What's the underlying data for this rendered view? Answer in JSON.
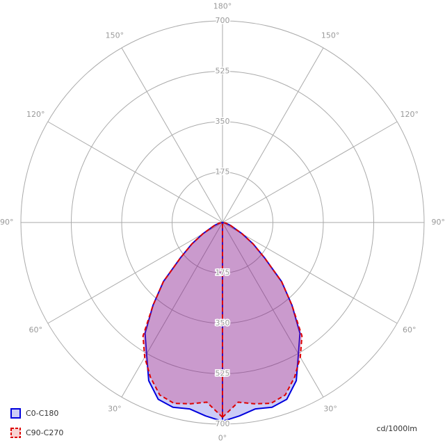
{
  "chart_data": {
    "type": "polar",
    "unit_label": "cd/1000lm",
    "angles": [
      0,
      5,
      10,
      15,
      20,
      25,
      30,
      35,
      40,
      45,
      50,
      55,
      60,
      70,
      80,
      90
    ],
    "series": [
      {
        "name": "C0-C180",
        "color": "#0000dd",
        "dashed": false,
        "values": [
          690,
          674,
          657,
          664,
          653,
          606,
          527,
          469,
          375,
          290,
          190,
          130,
          80,
          30,
          10,
          0
        ]
      },
      {
        "name": "C90-C270",
        "color": "#dd0000",
        "dashed": true,
        "values": [
          676,
          626,
          639,
          650,
          637,
          592,
          540,
          481,
          375,
          290,
          190,
          130,
          80,
          30,
          10,
          0
        ]
      }
    ],
    "rlim": [
      0,
      700
    ],
    "rticks": [
      175,
      350,
      525,
      700
    ],
    "angle_ticks": [
      {
        "value": 0,
        "label": "0°"
      },
      {
        "value": 30,
        "label": "30°"
      },
      {
        "value": 60,
        "label": "60°"
      },
      {
        "value": 90,
        "label": "90°"
      },
      {
        "value": 120,
        "label": "120°"
      },
      {
        "value": 150,
        "label": "150°"
      },
      {
        "value": 180,
        "label": "180°"
      }
    ],
    "grid": true
  }
}
